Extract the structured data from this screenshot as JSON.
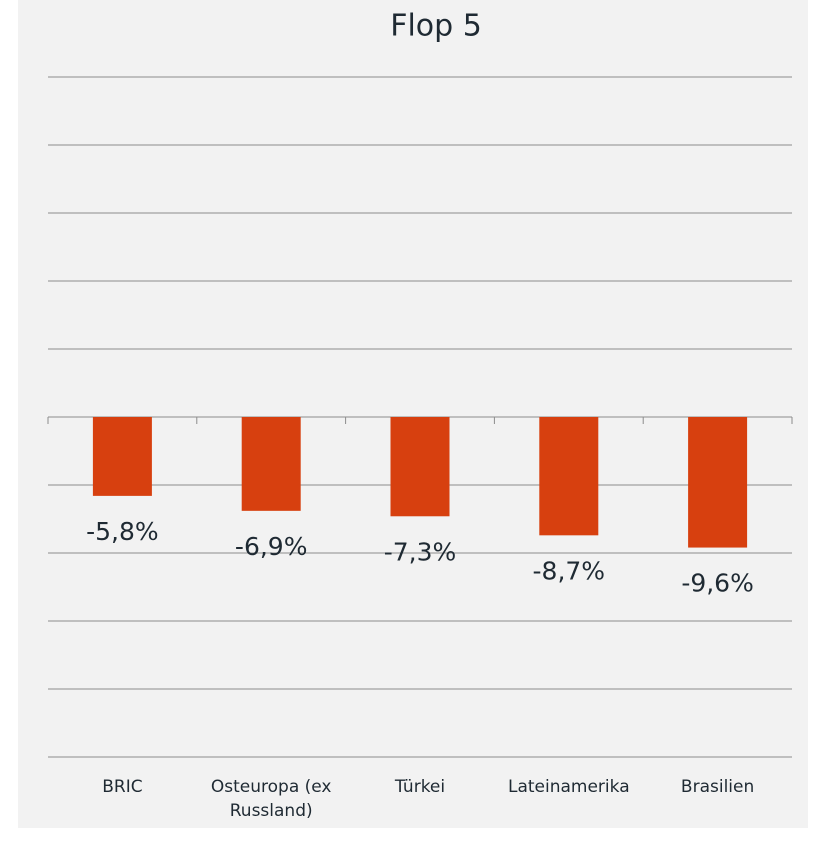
{
  "chart_data": {
    "type": "bar",
    "title": "Flop 5",
    "categories": [
      "BRIC",
      "Osteuropa (ex Russland)",
      "Türkei",
      "Lateinamerika",
      "Brasilien"
    ],
    "values": [
      -5.8,
      -6.9,
      -7.3,
      -8.7,
      -9.6
    ],
    "value_labels": [
      "-5,8%",
      "-6,9%",
      "-7,3%",
      "-8,7%",
      "-9,6%"
    ],
    "color": "#d7400f",
    "ylim": [
      -25,
      25
    ],
    "yticks": [
      -25,
      -20,
      -15,
      -10,
      -5,
      0,
      5,
      10,
      15,
      20,
      25
    ],
    "grid": true
  }
}
